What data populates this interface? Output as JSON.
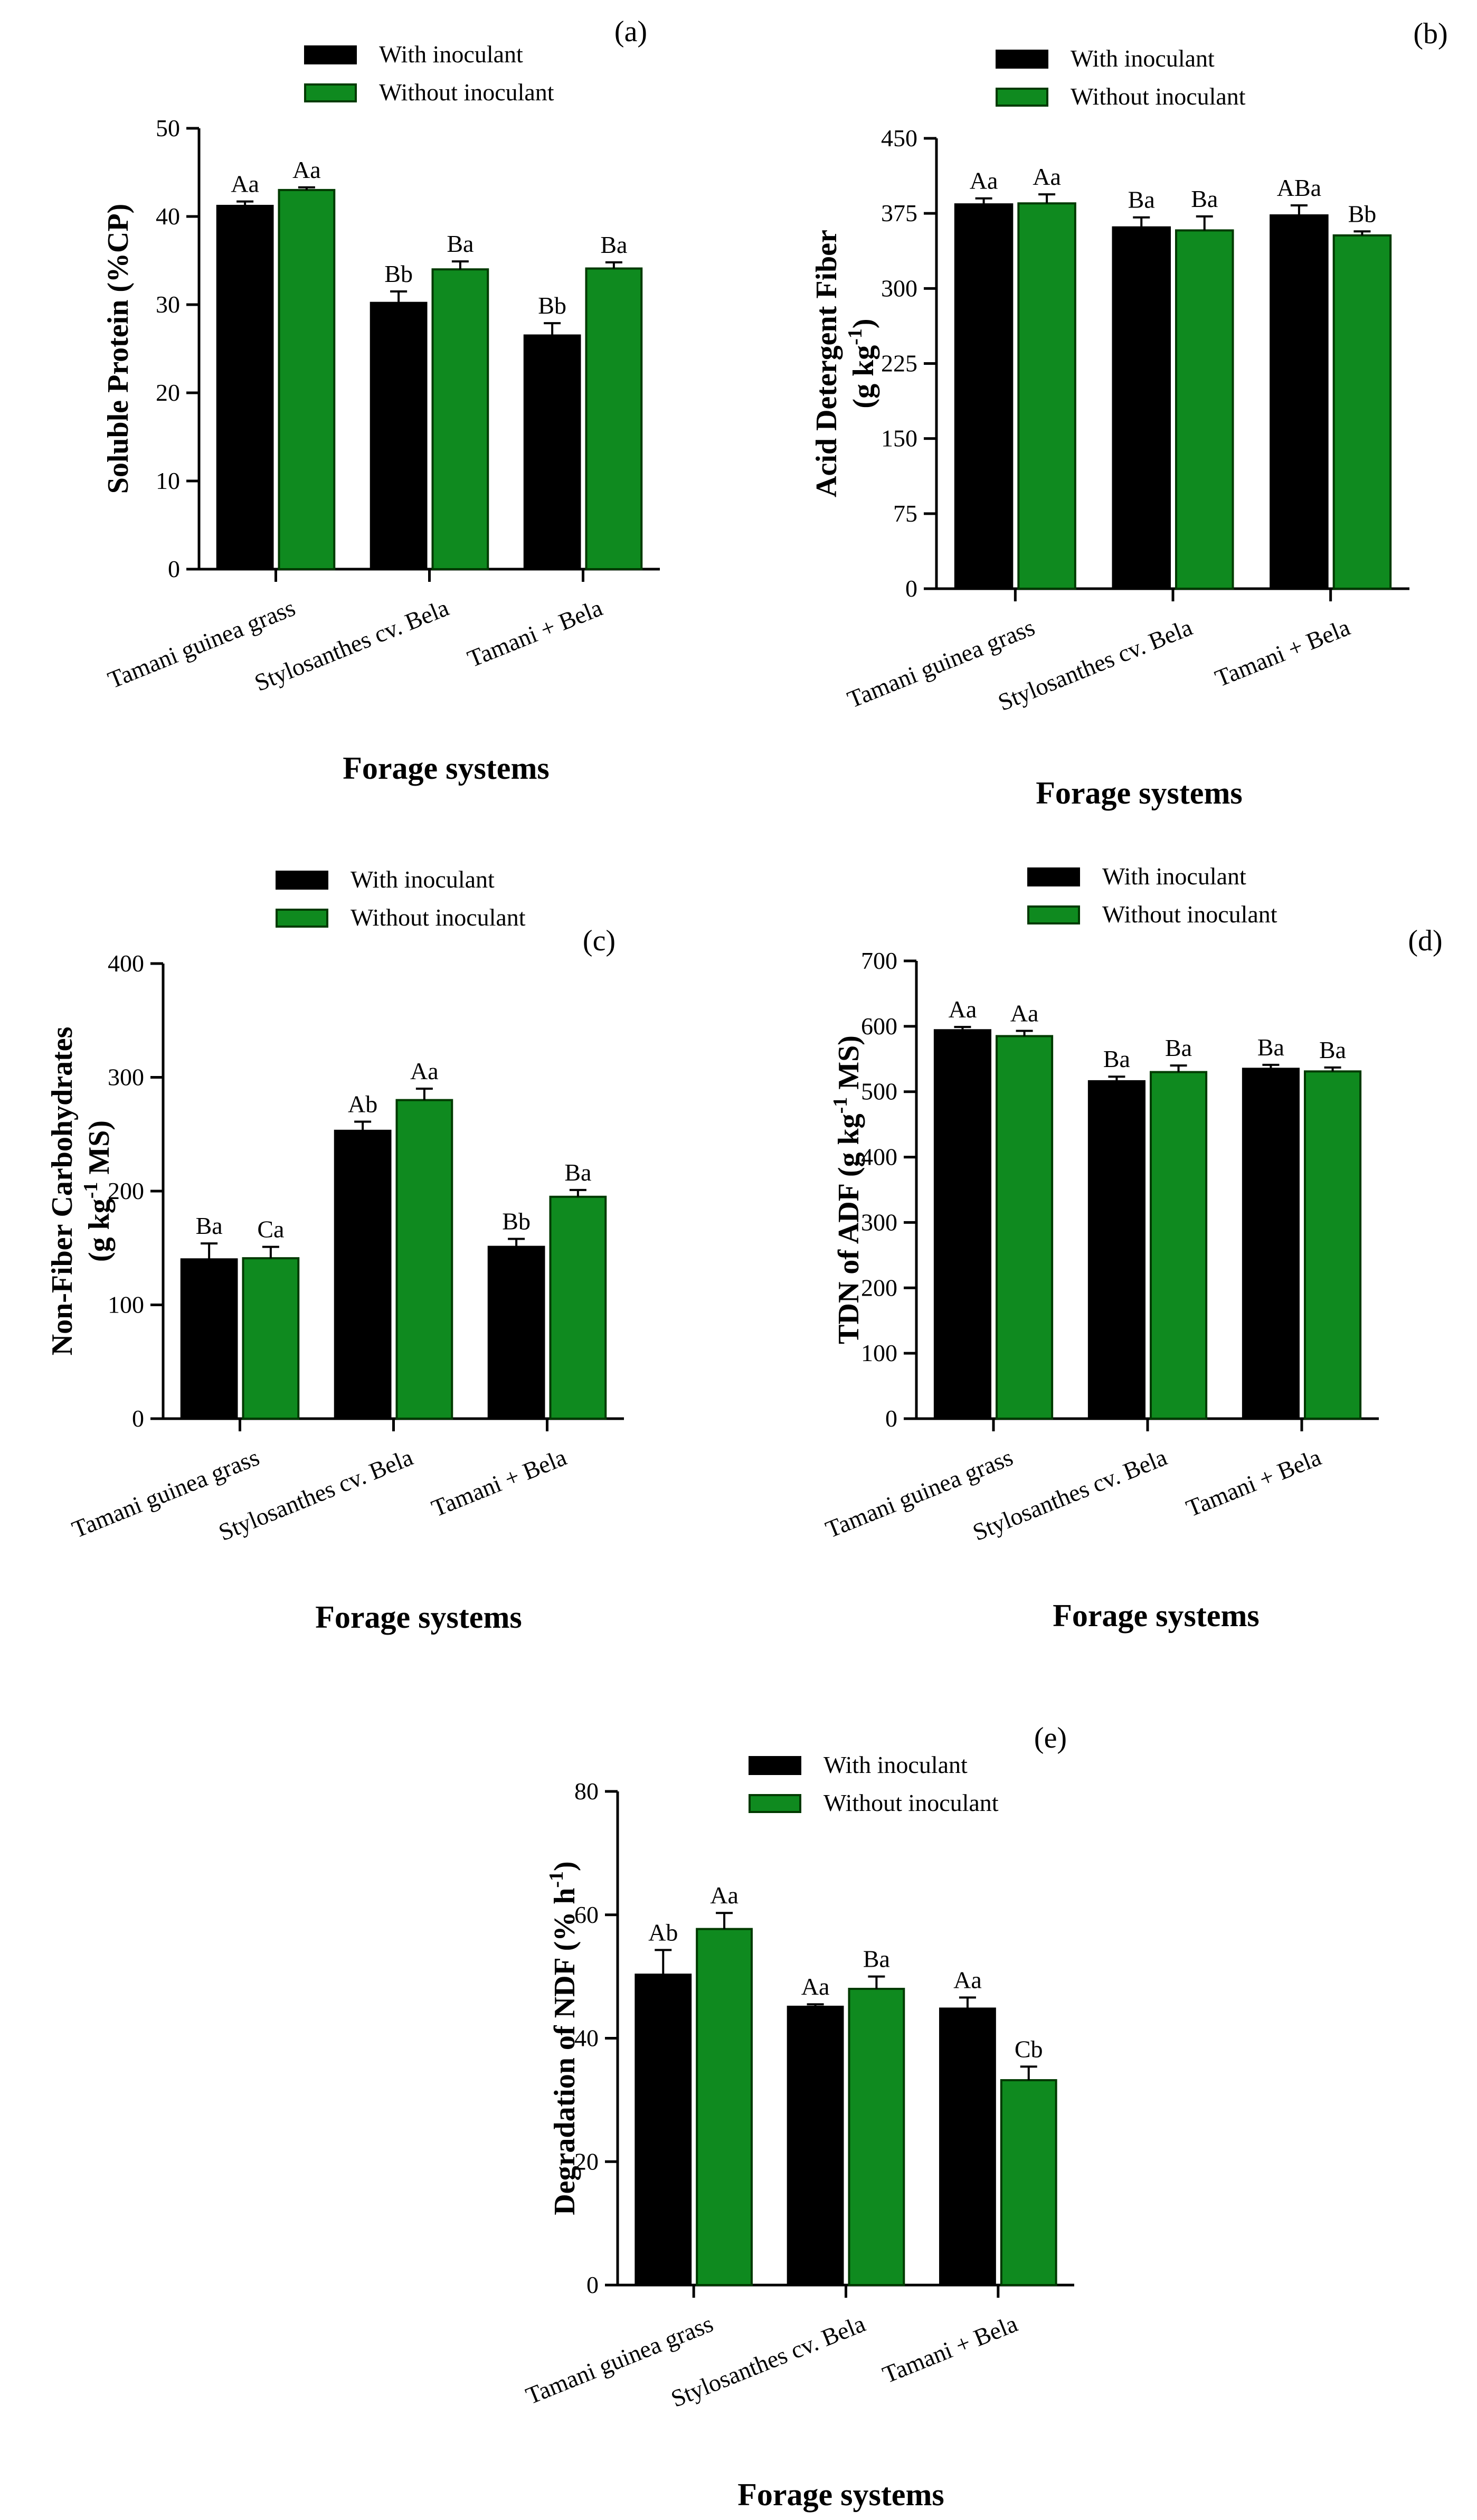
{
  "figure": {
    "xlabel": "Forage systems"
  },
  "chart_data": [
    {
      "panel": "(a)",
      "type": "bar",
      "ylabel": "Soluble Protein (%CP)",
      "ylabel_parts": [
        "Soluble Protein (%CP)"
      ],
      "xlabel": "Forage systems",
      "categories": [
        "Tamani guinea grass",
        "Stylosanthes cv. Bela",
        "Tamani + Bela"
      ],
      "ylim": [
        0,
        50
      ],
      "yticks": [
        0,
        10,
        20,
        30,
        40,
        50
      ],
      "legend": [
        "With inoculant",
        "Without inoculant"
      ],
      "series": [
        {
          "name": "With inoculant",
          "color": "#000000",
          "values": [
            41.2,
            30.2,
            26.5
          ],
          "errors": [
            0.5,
            1.3,
            1.4
          ],
          "labels": [
            "Aa",
            "Bb",
            "Bb"
          ]
        },
        {
          "name": "Without inoculant",
          "color": "#0f8a1f",
          "values": [
            43.0,
            34.0,
            34.1
          ],
          "errors": [
            0.3,
            0.9,
            0.7
          ],
          "labels": [
            "Aa",
            "Ba",
            "Ba"
          ]
        }
      ]
    },
    {
      "panel": "(b)",
      "type": "bar",
      "ylabel": "Acid Detergent Fiber (g kg-1)",
      "ylabel_parts": [
        "Acid Detergent Fiber",
        "(g kg",
        "-1",
        ")"
      ],
      "xlabel": "Forage systems",
      "categories": [
        "Tamani guinea grass",
        "Stylosanthes cv. Bela",
        "Tamani + Bela"
      ],
      "ylim": [
        0,
        450
      ],
      "yticks": [
        0,
        75,
        150,
        225,
        300,
        375,
        450
      ],
      "legend": [
        "With inoculant",
        "Without inoculant"
      ],
      "series": [
        {
          "name": "With inoculant",
          "color": "#000000",
          "values": [
            384,
            361,
            373
          ],
          "errors": [
            6,
            10,
            10
          ],
          "labels": [
            "Aa",
            "Ba",
            "ABa"
          ]
        },
        {
          "name": "Without inoculant",
          "color": "#0f8a1f",
          "values": [
            385,
            358,
            353
          ],
          "errors": [
            9,
            14,
            4
          ],
          "labels": [
            "Aa",
            "Ba",
            "Bb"
          ]
        }
      ]
    },
    {
      "panel": "(c)",
      "type": "bar",
      "ylabel": "Non-Fiber Carbohydrates (g kg-1 MS)",
      "ylabel_parts": [
        "Non-Fiber Carbohydrates",
        "(g kg",
        "-1",
        " MS)"
      ],
      "xlabel": "Forage systems",
      "categories": [
        "Tamani guinea grass",
        "Stylosanthes cv. Bela",
        "Tamani + Bela"
      ],
      "ylim": [
        0,
        400
      ],
      "yticks": [
        0,
        100,
        200,
        300,
        400
      ],
      "legend": [
        "With inoculant",
        "Without inoculant"
      ],
      "series": [
        {
          "name": "With inoculant",
          "color": "#000000",
          "values": [
            140,
            253,
            151
          ],
          "errors": [
            14,
            8,
            7
          ],
          "labels": [
            "Ba",
            "Ab",
            "Bb"
          ]
        },
        {
          "name": "Without inoculant",
          "color": "#0f8a1f",
          "values": [
            141,
            280,
            195
          ],
          "errors": [
            10,
            10,
            6
          ],
          "labels": [
            "Ca",
            "Aa",
            "Ba"
          ]
        }
      ]
    },
    {
      "panel": "(d)",
      "type": "bar",
      "ylabel": "TDN of ADF (g kg-1 MS)",
      "ylabel_parts": [
        "TDN of ADF (g kg",
        "-1",
        " MS)"
      ],
      "xlabel": "Forage systems",
      "categories": [
        "Tamani guinea grass",
        "Stylosanthes cv. Bela",
        "Tamani + Bela"
      ],
      "ylim": [
        0,
        700
      ],
      "yticks": [
        0,
        100,
        200,
        300,
        400,
        500,
        600,
        700
      ],
      "legend": [
        "With inoculant",
        "Without inoculant"
      ],
      "series": [
        {
          "name": "With inoculant",
          "color": "#000000",
          "values": [
            594,
            516,
            535
          ],
          "errors": [
            5,
            7,
            6
          ],
          "labels": [
            "Aa",
            "Ba",
            "Ba"
          ]
        },
        {
          "name": "Without inoculant",
          "color": "#0f8a1f",
          "values": [
            585,
            530,
            531
          ],
          "errors": [
            8,
            10,
            6
          ],
          "labels": [
            "Aa",
            "Ba",
            "Ba"
          ]
        }
      ]
    },
    {
      "panel": "(e)",
      "type": "bar",
      "ylabel": "Degradation of NDF (% h-1)",
      "ylabel_parts": [
        "Degradation of NDF (% h",
        "-1",
        ")"
      ],
      "xlabel": "Forage systems",
      "categories": [
        "Tamani guinea grass",
        "Stylosanthes cv. Bela",
        "Tamani + Bela"
      ],
      "ylim": [
        0,
        80
      ],
      "yticks": [
        0,
        20,
        40,
        60,
        80
      ],
      "legend": [
        "With inoculant",
        "Without inoculant"
      ],
      "series": [
        {
          "name": "With inoculant",
          "color": "#000000",
          "values": [
            50.3,
            45.1,
            44.8
          ],
          "errors": [
            4.0,
            0.4,
            1.8
          ],
          "labels": [
            "Ab",
            "Aa",
            "Aa"
          ]
        },
        {
          "name": "Without inoculant",
          "color": "#0f8a1f",
          "values": [
            57.7,
            48.0,
            33.2
          ],
          "errors": [
            2.6,
            2.0,
            2.2
          ],
          "labels": [
            "Aa",
            "Ba",
            "Cb"
          ]
        }
      ]
    }
  ]
}
